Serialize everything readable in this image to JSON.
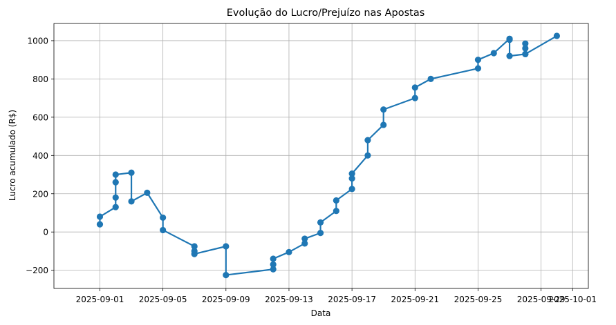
{
  "chart_data": {
    "type": "line",
    "title": "Evolução do Lucro/Prejuízo nas Apostas",
    "xlabel": "Data",
    "ylabel": "Lucro acumulado (R$)",
    "x_type": "date",
    "xlim": [
      "2025-08-29T02:00",
      "2025-10-02T00:00"
    ],
    "ylim": [
      -295,
      1090
    ],
    "x_ticks": [
      "2025-09-01",
      "2025-09-05",
      "2025-09-09",
      "2025-09-13",
      "2025-09-17",
      "2025-09-21",
      "2025-09-25",
      "2025-09-29",
      "2025-10-01"
    ],
    "y_ticks": [
      -200,
      0,
      200,
      400,
      600,
      800,
      1000
    ],
    "y_tick_labels": [
      "−200",
      "0",
      "200",
      "400",
      "600",
      "800",
      "1000"
    ],
    "grid": true,
    "legend": "none",
    "color": "#1f77b4",
    "series": [
      {
        "marker": "circle",
        "x": [
          "2025-09-01",
          "2025-09-01",
          "2025-09-02",
          "2025-09-02",
          "2025-09-02",
          "2025-09-02",
          "2025-09-03",
          "2025-09-03",
          "2025-09-04",
          "2025-09-05",
          "2025-09-05",
          "2025-09-07",
          "2025-09-07",
          "2025-09-07",
          "2025-09-09",
          "2025-09-09",
          "2025-09-12",
          "2025-09-12",
          "2025-09-12",
          "2025-09-13",
          "2025-09-14",
          "2025-09-14",
          "2025-09-15",
          "2025-09-15",
          "2025-09-16",
          "2025-09-16",
          "2025-09-17",
          "2025-09-17",
          "2025-09-17",
          "2025-09-18",
          "2025-09-18",
          "2025-09-19",
          "2025-09-19",
          "2025-09-21",
          "2025-09-21",
          "2025-09-22",
          "2025-09-25",
          "2025-09-25",
          "2025-09-26",
          "2025-09-27",
          "2025-09-27",
          "2025-09-27",
          "2025-09-28",
          "2025-09-28",
          "2025-09-28",
          "2025-09-28",
          "2025-09-30"
        ],
        "values": [
          40,
          80,
          130,
          180,
          260,
          300,
          310,
          160,
          205,
          75,
          10,
          -75,
          -100,
          -115,
          -75,
          -225,
          -195,
          -170,
          -140,
          -105,
          -60,
          -35,
          -5,
          50,
          110,
          165,
          225,
          280,
          305,
          400,
          480,
          560,
          640,
          700,
          755,
          800,
          855,
          900,
          935,
          1010,
          1005,
          920,
          930,
          960,
          985,
          930,
          1025
        ]
      }
    ]
  }
}
